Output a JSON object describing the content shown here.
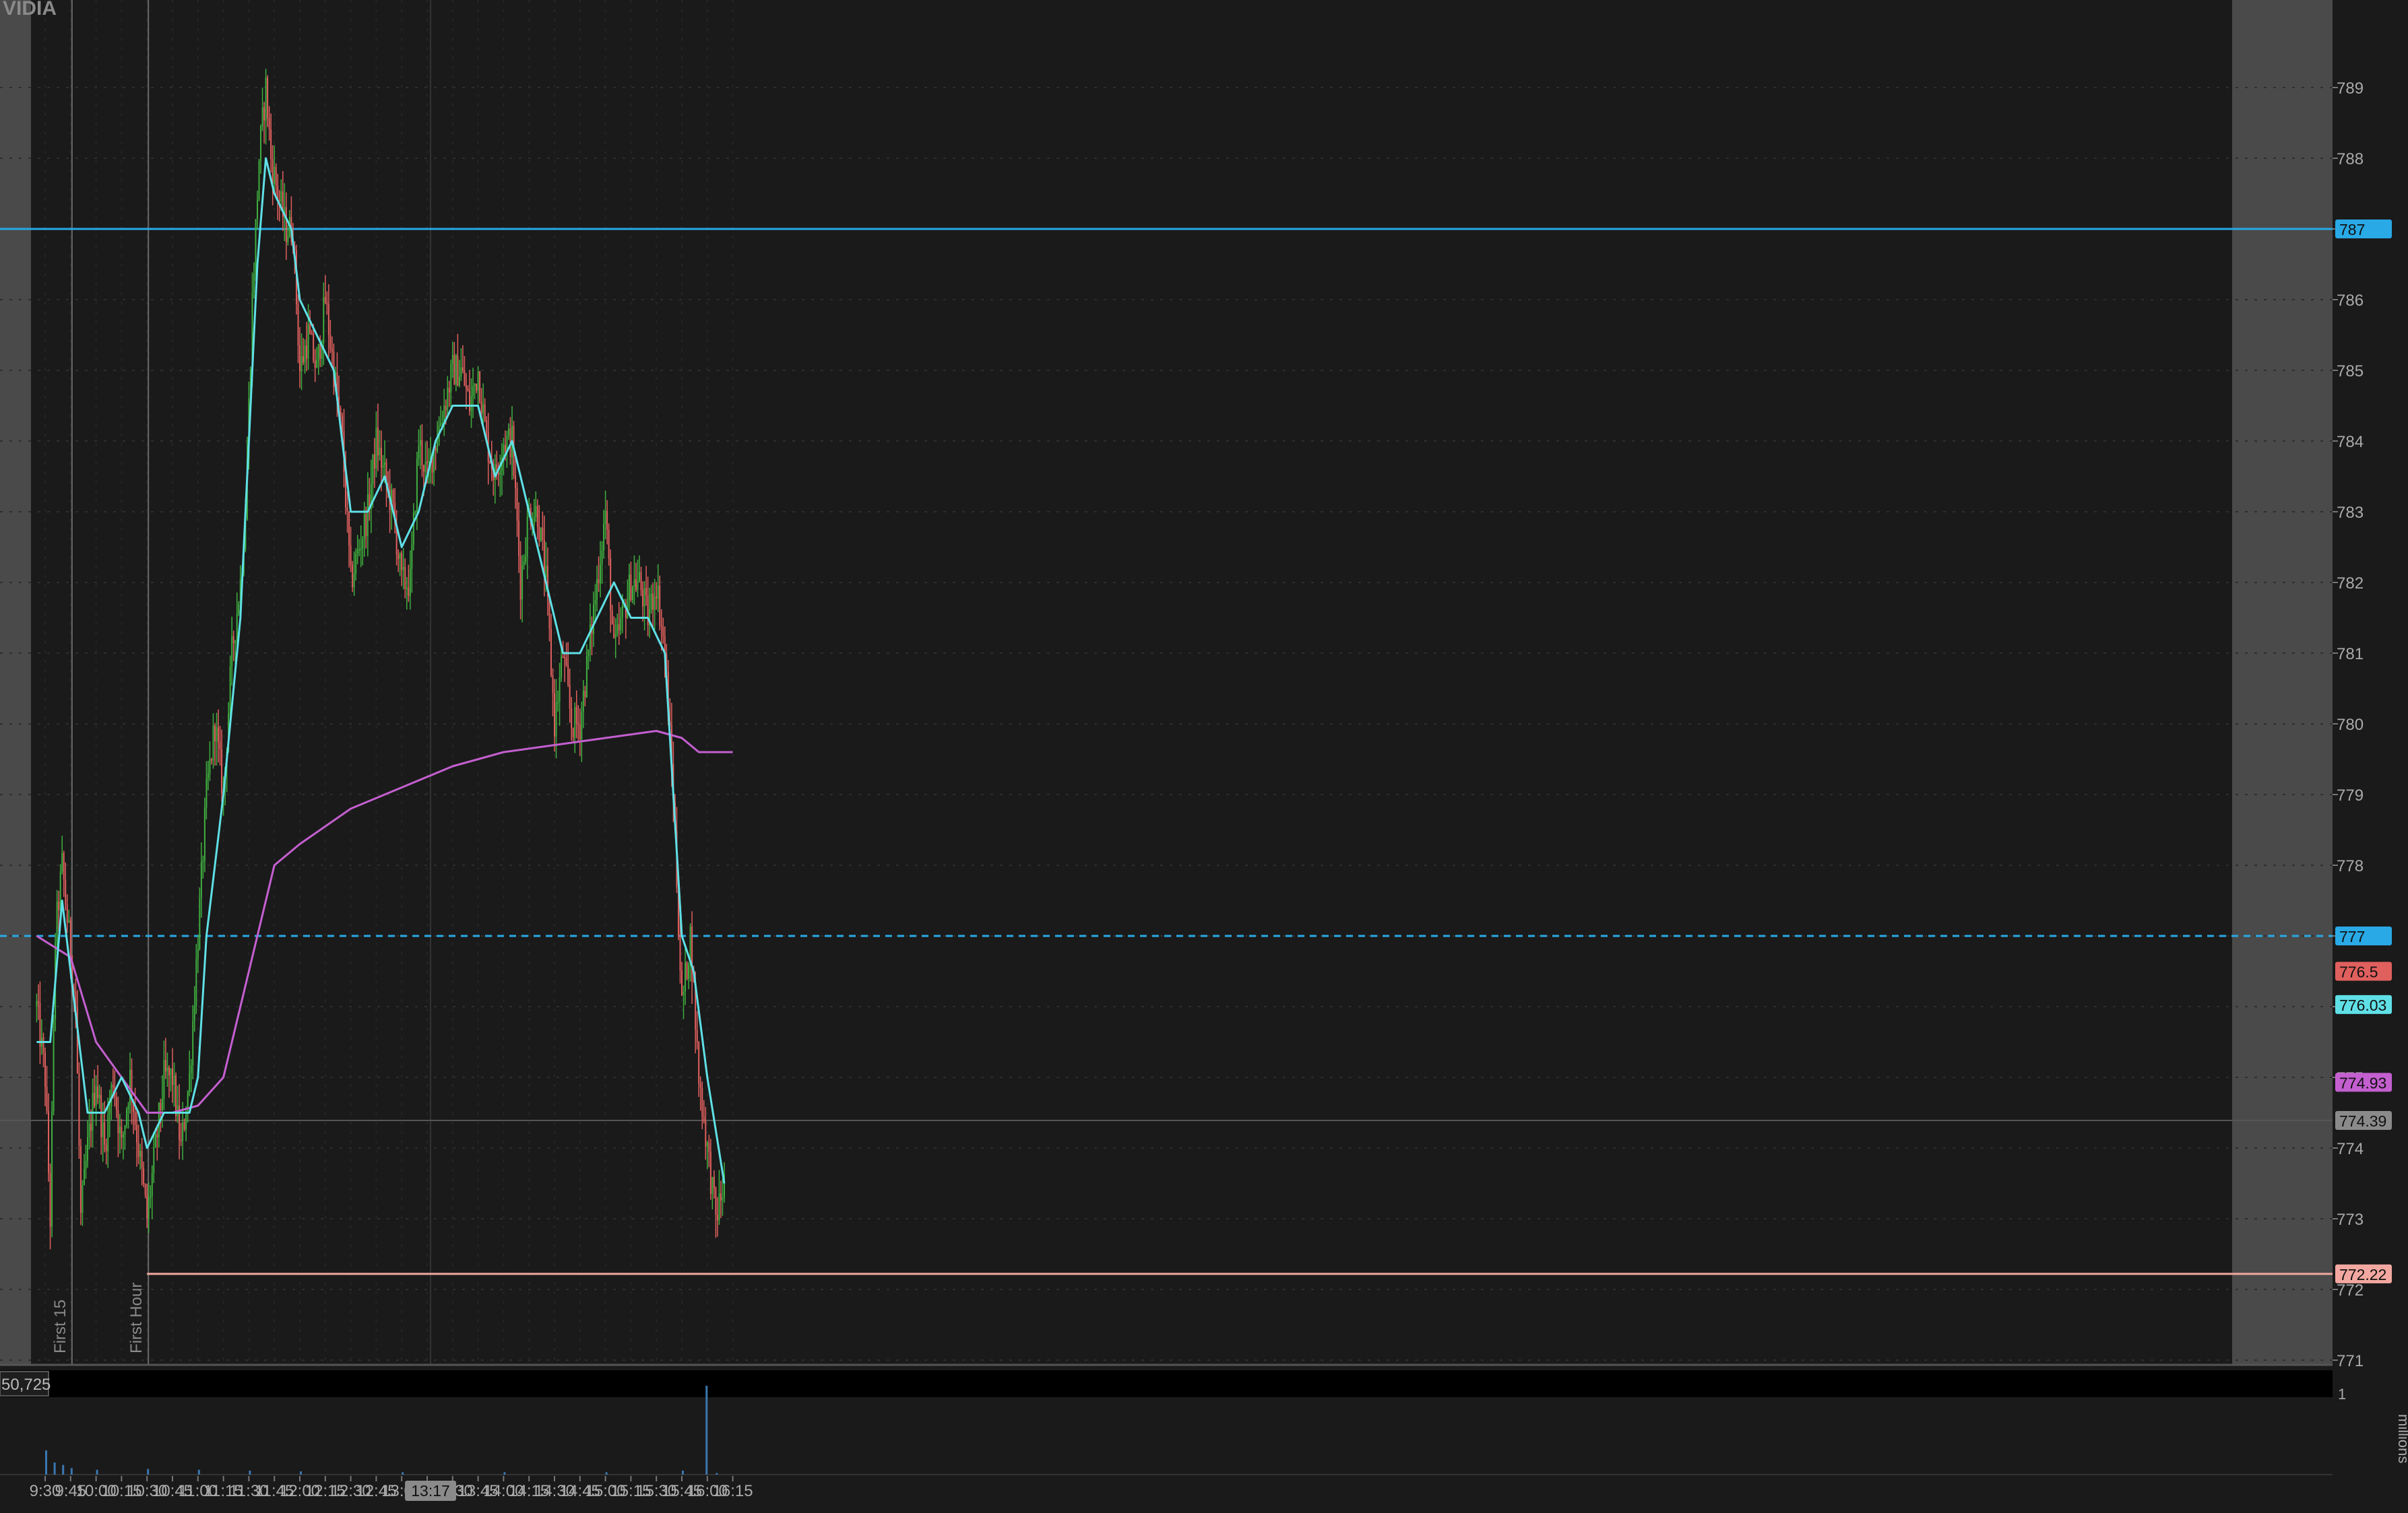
{
  "symbol_label": "VIDIA",
  "volume_readout": "50,725",
  "volume_axis": {
    "label": "millions",
    "tick": "1"
  },
  "crosshair_time": "13:17",
  "colors": {
    "background": "#1a1a1a",
    "extended_hours_shade": "#4a4a4a",
    "up_candle": "#3fae3f",
    "down_candle": "#e0605e",
    "ema": "#5fe0e6",
    "vwap": "#c45fd0",
    "level_line": "#29a9e6",
    "low_line": "#f2a8a0"
  },
  "chart_data": {
    "type": "candlestick",
    "x_ticks": [
      "9:30",
      "9:45",
      "10:00",
      "10:15",
      "10:30",
      "10:45",
      "11:00",
      "11:15",
      "11:30",
      "11:45",
      "12:00",
      "12:15",
      "12:30",
      "12:45",
      "13:00",
      "13:15",
      "13:30",
      "13:45",
      "14:00",
      "14:15",
      "14:30",
      "14:45",
      "15:00",
      "15:15",
      "15:30",
      "15:45",
      "16:00",
      "16:15"
    ],
    "y_ticks": [
      771,
      772,
      773,
      774,
      775,
      776,
      777,
      778,
      779,
      780,
      781,
      782,
      783,
      784,
      785,
      786,
      787,
      788,
      789
    ],
    "ylim": [
      770.5,
      789.5
    ],
    "price_tags": [
      {
        "label": "787",
        "value": 787,
        "color": "#29a9e6"
      },
      {
        "label": "777",
        "value": 777,
        "color": "#29a9e6"
      },
      {
        "label": "776.5",
        "value": 776.5,
        "color": "#e0605e"
      },
      {
        "label": "776.03",
        "value": 776.03,
        "color": "#5fe0e6"
      },
      {
        "label": "774.93",
        "value": 774.93,
        "color": "#c45fd0"
      },
      {
        "label": "774.39",
        "value": 774.39,
        "color": "#8a8a8a"
      },
      {
        "label": "772.22",
        "value": 772.22,
        "color": "#f2a8a0"
      }
    ],
    "vertical_markers": [
      {
        "label": "First 15",
        "time": "9:45"
      },
      {
        "label": "First Hour",
        "time": "10:30"
      }
    ],
    "horizontal_lines": [
      {
        "value": 787,
        "style": "solid",
        "color": "#29a9e6"
      },
      {
        "value": 777,
        "style": "dashed",
        "color": "#29a9e6"
      },
      {
        "value": 772.22,
        "style": "solid",
        "color": "#f2a8a0",
        "from": "10:30"
      }
    ],
    "price_path": [
      [
        "9:25",
        776
      ],
      [
        "9:30",
        775
      ],
      [
        "9:33",
        773
      ],
      [
        "9:36",
        777
      ],
      [
        "9:40",
        778
      ],
      [
        "9:44",
        777
      ],
      [
        "9:48",
        776
      ],
      [
        "9:51",
        773
      ],
      [
        "9:55",
        774
      ],
      [
        "10:00",
        775
      ],
      [
        "10:05",
        774
      ],
      [
        "10:10",
        775
      ],
      [
        "10:15",
        774
      ],
      [
        "10:20",
        775
      ],
      [
        "10:25",
        774
      ],
      [
        "10:30",
        773
      ],
      [
        "10:35",
        774
      ],
      [
        "10:40",
        775
      ],
      [
        "10:45",
        775
      ],
      [
        "10:50",
        774
      ],
      [
        "10:55",
        775
      ],
      [
        "11:00",
        777
      ],
      [
        "11:05",
        779
      ],
      [
        "11:10",
        780
      ],
      [
        "11:15",
        779
      ],
      [
        "11:20",
        781
      ],
      [
        "11:25",
        782
      ],
      [
        "11:28",
        783
      ],
      [
        "11:32",
        786
      ],
      [
        "11:36",
        788
      ],
      [
        "11:40",
        789
      ],
      [
        "11:43",
        788
      ],
      [
        "11:47",
        787.5
      ],
      [
        "11:52",
        787
      ],
      [
        "11:56",
        787
      ],
      [
        "12:00",
        785
      ],
      [
        "12:05",
        785.5
      ],
      [
        "12:10",
        785
      ],
      [
        "12:15",
        786
      ],
      [
        "12:20",
        785
      ],
      [
        "12:25",
        784
      ],
      [
        "12:30",
        782
      ],
      [
        "12:35",
        782.5
      ],
      [
        "12:40",
        783
      ],
      [
        "12:45",
        784
      ],
      [
        "12:50",
        783.5
      ],
      [
        "12:55",
        783
      ],
      [
        "13:00",
        782
      ],
      [
        "13:05",
        782
      ],
      [
        "13:10",
        784
      ],
      [
        "13:15",
        783.5
      ],
      [
        "13:20",
        784
      ],
      [
        "13:25",
        784.5
      ],
      [
        "13:30",
        785
      ],
      [
        "13:35",
        785
      ],
      [
        "13:40",
        784.5
      ],
      [
        "13:45",
        785
      ],
      [
        "13:50",
        784
      ],
      [
        "13:55",
        783.5
      ],
      [
        "14:00",
        784
      ],
      [
        "14:05",
        784
      ],
      [
        "14:10",
        782
      ],
      [
        "14:15",
        783
      ],
      [
        "14:20",
        783
      ],
      [
        "14:25",
        782
      ],
      [
        "14:30",
        780
      ],
      [
        "14:35",
        781
      ],
      [
        "14:40",
        780
      ],
      [
        "14:45",
        780
      ],
      [
        "14:50",
        781
      ],
      [
        "14:55",
        782
      ],
      [
        "15:00",
        783
      ],
      [
        "15:05",
        781
      ],
      [
        "15:10",
        781.5
      ],
      [
        "15:15",
        782
      ],
      [
        "15:20",
        782
      ],
      [
        "15:25",
        781.5
      ],
      [
        "15:30",
        782
      ],
      [
        "15:35",
        781
      ],
      [
        "15:40",
        779
      ],
      [
        "15:45",
        776
      ],
      [
        "15:50",
        777
      ],
      [
        "15:55",
        775
      ],
      [
        "16:00",
        774
      ],
      [
        "16:05",
        773
      ],
      [
        "16:10",
        773.5
      ]
    ],
    "ema": [
      [
        "9:25",
        775.5
      ],
      [
        "9:33",
        775.5
      ],
      [
        "9:40",
        777.5
      ],
      [
        "9:45",
        776.5
      ],
      [
        "9:55",
        774.5
      ],
      [
        "10:05",
        774.5
      ],
      [
        "10:15",
        775
      ],
      [
        "10:25",
        774.5
      ],
      [
        "10:30",
        774
      ],
      [
        "10:40",
        774.5
      ],
      [
        "10:50",
        774.5
      ],
      [
        "10:55",
        774.5
      ],
      [
        "11:00",
        775
      ],
      [
        "11:05",
        777
      ],
      [
        "11:15",
        779
      ],
      [
        "11:25",
        781.5
      ],
      [
        "11:30",
        784
      ],
      [
        "11:35",
        786.5
      ],
      [
        "11:40",
        788
      ],
      [
        "11:45",
        787.5
      ],
      [
        "11:55",
        787
      ],
      [
        "12:00",
        786
      ],
      [
        "12:10",
        785.5
      ],
      [
        "12:20",
        785
      ],
      [
        "12:30",
        783
      ],
      [
        "12:40",
        783
      ],
      [
        "12:50",
        783.5
      ],
      [
        "13:00",
        782.5
      ],
      [
        "13:10",
        783
      ],
      [
        "13:20",
        784
      ],
      [
        "13:30",
        784.5
      ],
      [
        "13:45",
        784.5
      ],
      [
        "13:55",
        783.5
      ],
      [
        "14:05",
        784
      ],
      [
        "14:15",
        783
      ],
      [
        "14:25",
        782
      ],
      [
        "14:35",
        781
      ],
      [
        "14:45",
        781
      ],
      [
        "14:55",
        781.5
      ],
      [
        "15:05",
        782
      ],
      [
        "15:15",
        781.5
      ],
      [
        "15:25",
        781.5
      ],
      [
        "15:35",
        781
      ],
      [
        "15:45",
        777
      ],
      [
        "15:52",
        776.5
      ],
      [
        "16:00",
        775
      ],
      [
        "16:10",
        773.5
      ]
    ],
    "vwap": [
      [
        "9:25",
        777
      ],
      [
        "9:45",
        776.7
      ],
      [
        "10:00",
        775.5
      ],
      [
        "10:30",
        774.5
      ],
      [
        "10:45",
        774.5
      ],
      [
        "11:00",
        774.6
      ],
      [
        "11:15",
        775
      ],
      [
        "11:25",
        776
      ],
      [
        "11:35",
        777
      ],
      [
        "11:45",
        778
      ],
      [
        "12:00",
        778.3
      ],
      [
        "12:30",
        778.8
      ],
      [
        "13:00",
        779.1
      ],
      [
        "13:30",
        779.4
      ],
      [
        "14:00",
        779.6
      ],
      [
        "14:30",
        779.7
      ],
      [
        "15:00",
        779.8
      ],
      [
        "15:30",
        779.9
      ],
      [
        "15:45",
        779.8
      ],
      [
        "15:55",
        779.6
      ],
      [
        "16:15",
        779.6
      ]
    ],
    "volume": [
      [
        "9:30",
        0.3
      ],
      [
        "9:35",
        0.15
      ],
      [
        "9:40",
        0.12
      ],
      [
        "9:45",
        0.08
      ],
      [
        "10:00",
        0.06
      ],
      [
        "10:30",
        0.07
      ],
      [
        "11:00",
        0.06
      ],
      [
        "11:30",
        0.05
      ],
      [
        "12:00",
        0.04
      ],
      [
        "13:00",
        0.03
      ],
      [
        "14:00",
        0.03
      ],
      [
        "15:00",
        0.03
      ],
      [
        "15:45",
        0.05
      ],
      [
        "15:59",
        1.1
      ],
      [
        "16:05",
        0.02
      ]
    ]
  }
}
